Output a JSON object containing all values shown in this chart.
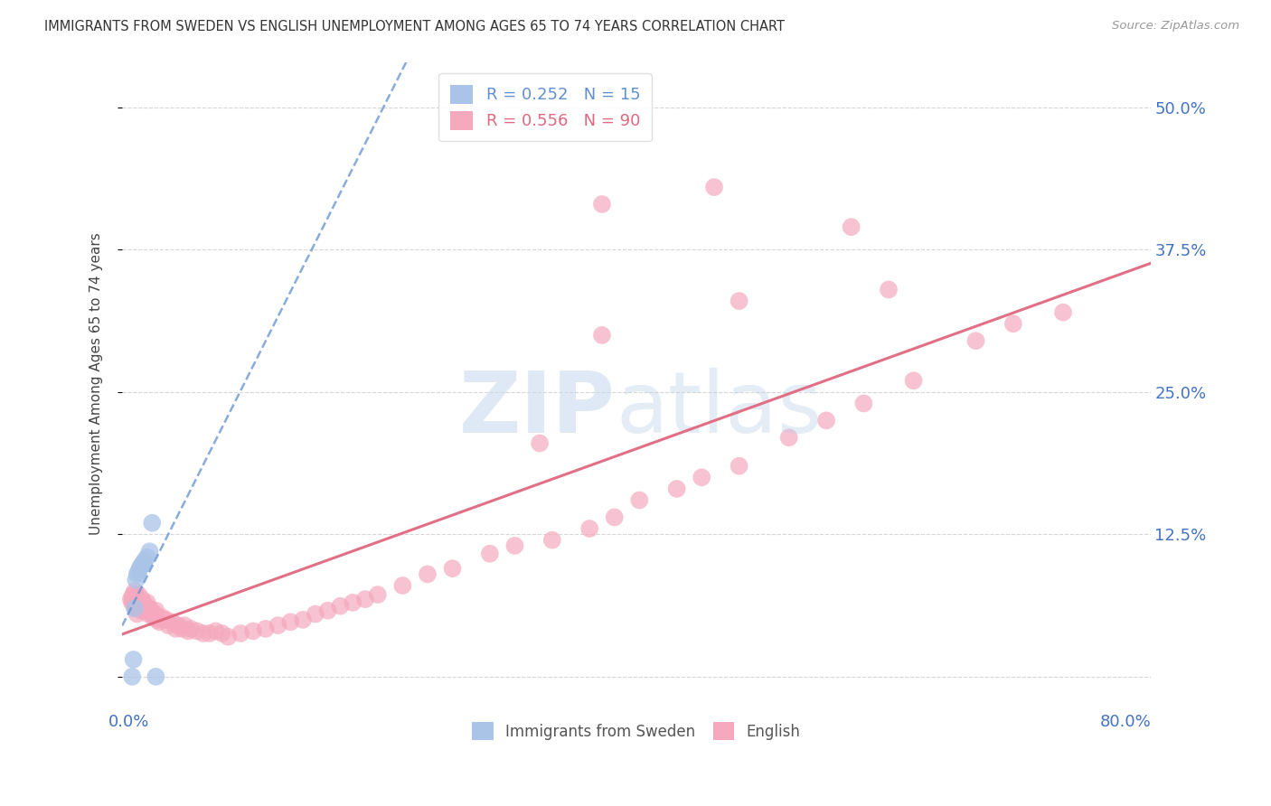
{
  "title": "IMMIGRANTS FROM SWEDEN VS ENGLISH UNEMPLOYMENT AMONG AGES 65 TO 74 YEARS CORRELATION CHART",
  "source": "Source: ZipAtlas.com",
  "ylabel": "Unemployment Among Ages 65 to 74 years",
  "xlim": [
    -0.005,
    0.82
  ],
  "ylim": [
    -0.025,
    0.54
  ],
  "x_ticks": [
    0.0,
    0.2,
    0.4,
    0.6,
    0.8
  ],
  "x_tick_labels": [
    "0.0%",
    "",
    "",
    "",
    "80.0%"
  ],
  "y_ticks": [
    0.0,
    0.125,
    0.25,
    0.375,
    0.5
  ],
  "y_tick_labels_right": [
    "",
    "12.5%",
    "25.0%",
    "37.5%",
    "50.0%"
  ],
  "sweden_R": 0.252,
  "sweden_N": 15,
  "english_R": 0.556,
  "english_N": 90,
  "sweden_color": "#aac4e8",
  "english_color": "#f5a8be",
  "sweden_line_color": "#6090d0",
  "english_line_color": "#e06880",
  "background_color": "#ffffff",
  "grid_color": "#cccccc",
  "sweden_x": [
    0.003,
    0.004,
    0.005,
    0.006,
    0.007,
    0.008,
    0.009,
    0.01,
    0.011,
    0.012,
    0.013,
    0.015,
    0.017,
    0.019,
    0.022
  ],
  "sweden_y": [
    0.0,
    0.015,
    0.06,
    0.085,
    0.09,
    0.092,
    0.095,
    0.097,
    0.098,
    0.1,
    0.102,
    0.105,
    0.11,
    0.135,
    0.0
  ],
  "english_x": [
    0.002,
    0.003,
    0.003,
    0.004,
    0.004,
    0.005,
    0.005,
    0.005,
    0.006,
    0.006,
    0.006,
    0.007,
    0.007,
    0.008,
    0.008,
    0.009,
    0.009,
    0.01,
    0.01,
    0.011,
    0.011,
    0.012,
    0.012,
    0.013,
    0.014,
    0.015,
    0.015,
    0.016,
    0.017,
    0.018,
    0.019,
    0.02,
    0.021,
    0.022,
    0.023,
    0.025,
    0.027,
    0.03,
    0.032,
    0.035,
    0.038,
    0.04,
    0.043,
    0.045,
    0.048,
    0.05,
    0.055,
    0.06,
    0.065,
    0.07,
    0.075,
    0.08,
    0.09,
    0.1,
    0.11,
    0.12,
    0.13,
    0.14,
    0.15,
    0.16,
    0.17,
    0.18,
    0.19,
    0.2,
    0.22,
    0.24,
    0.26,
    0.29,
    0.31,
    0.34,
    0.37,
    0.39,
    0.41,
    0.44,
    0.46,
    0.49,
    0.53,
    0.56,
    0.59,
    0.63,
    0.38,
    0.49,
    0.61,
    0.75,
    0.71,
    0.68,
    0.58,
    0.47,
    0.38,
    0.33
  ],
  "english_y": [
    0.068,
    0.07,
    0.065,
    0.065,
    0.072,
    0.062,
    0.068,
    0.075,
    0.06,
    0.065,
    0.07,
    0.055,
    0.068,
    0.062,
    0.072,
    0.06,
    0.066,
    0.058,
    0.065,
    0.06,
    0.068,
    0.058,
    0.065,
    0.062,
    0.06,
    0.058,
    0.065,
    0.055,
    0.06,
    0.058,
    0.055,
    0.052,
    0.055,
    0.058,
    0.05,
    0.048,
    0.052,
    0.05,
    0.045,
    0.048,
    0.042,
    0.045,
    0.042,
    0.045,
    0.04,
    0.042,
    0.04,
    0.038,
    0.038,
    0.04,
    0.038,
    0.035,
    0.038,
    0.04,
    0.042,
    0.045,
    0.048,
    0.05,
    0.055,
    0.058,
    0.062,
    0.065,
    0.068,
    0.072,
    0.08,
    0.09,
    0.095,
    0.108,
    0.115,
    0.12,
    0.13,
    0.14,
    0.155,
    0.165,
    0.175,
    0.185,
    0.21,
    0.225,
    0.24,
    0.26,
    0.3,
    0.33,
    0.34,
    0.32,
    0.31,
    0.295,
    0.395,
    0.43,
    0.415,
    0.205
  ]
}
